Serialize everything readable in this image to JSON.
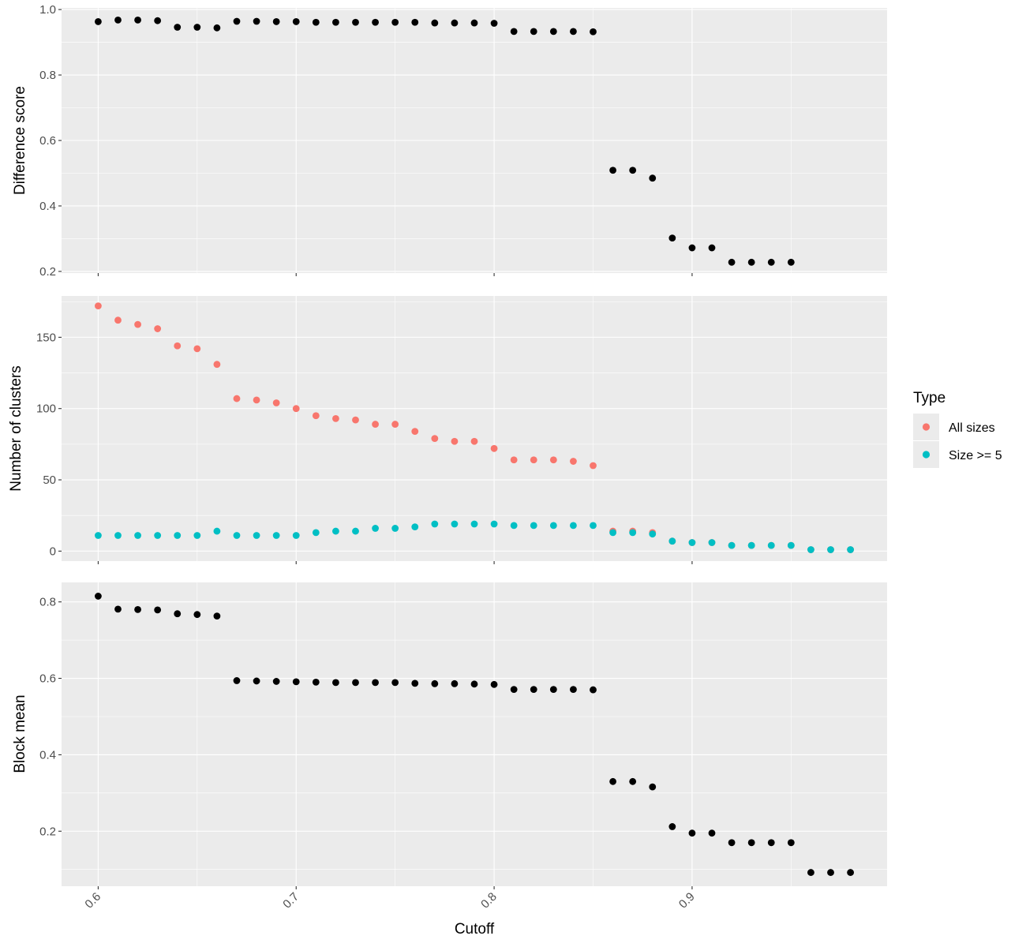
{
  "figure": {
    "x_axis_title": "Cutoff",
    "x_ticks": [
      0.6,
      0.7,
      0.8,
      0.9
    ],
    "x_tick_labels": [
      "0.6",
      "0.7",
      "0.8",
      "0.9"
    ],
    "xlim": [
      0.5815,
      0.9985
    ]
  },
  "legend": {
    "title": "Type",
    "items": [
      {
        "label": "All sizes",
        "color": "#F8766D"
      },
      {
        "label": "Size >= 5",
        "color": "#00BFC4"
      }
    ]
  },
  "chart_data": [
    {
      "type": "scatter",
      "ylabel": "Difference score",
      "xlabel": "",
      "ylim": [
        0.195,
        1.005
      ],
      "y_ticks": [
        0.2,
        0.4,
        0.6,
        0.8,
        1.0
      ],
      "y_tick_labels": [
        "0.2",
        "0.4",
        "0.6",
        "0.8",
        "1.0"
      ],
      "grid": true,
      "series": [
        {
          "color": "#000000",
          "x": [
            0.6,
            0.61,
            0.62,
            0.63,
            0.64,
            0.65,
            0.66,
            0.67,
            0.68,
            0.69,
            0.7,
            0.71,
            0.72,
            0.73,
            0.74,
            0.75,
            0.76,
            0.77,
            0.78,
            0.79,
            0.8,
            0.81,
            0.82,
            0.83,
            0.84,
            0.85,
            0.86,
            0.87,
            0.88,
            0.89,
            0.9,
            0.91,
            0.92,
            0.93,
            0.94,
            0.95
          ],
          "y": [
            0.963,
            0.968,
            0.968,
            0.966,
            0.946,
            0.946,
            0.944,
            0.964,
            0.964,
            0.963,
            0.963,
            0.961,
            0.961,
            0.961,
            0.961,
            0.961,
            0.961,
            0.959,
            0.959,
            0.959,
            0.958,
            0.933,
            0.933,
            0.933,
            0.933,
            0.932,
            0.509,
            0.509,
            0.485,
            0.302,
            0.272,
            0.272,
            0.228,
            0.228,
            0.228,
            0.228
          ]
        }
      ]
    },
    {
      "type": "scatter",
      "ylabel": "Number of clusters",
      "xlabel": "",
      "ylim": [
        -7,
        179
      ],
      "y_ticks": [
        0,
        50,
        100,
        150
      ],
      "y_tick_labels": [
        "0",
        "50",
        "100",
        "150"
      ],
      "grid": true,
      "legend": "right",
      "series": [
        {
          "name": "All sizes",
          "color": "#F8766D",
          "x": [
            0.6,
            0.61,
            0.62,
            0.63,
            0.64,
            0.65,
            0.66,
            0.67,
            0.68,
            0.69,
            0.7,
            0.71,
            0.72,
            0.73,
            0.74,
            0.75,
            0.76,
            0.77,
            0.78,
            0.79,
            0.8,
            0.81,
            0.82,
            0.83,
            0.84,
            0.85,
            0.86,
            0.87,
            0.88,
            0.89,
            0.9,
            0.91,
            0.92,
            0.93,
            0.94,
            0.95,
            0.96,
            0.97,
            0.98
          ],
          "y": [
            172,
            162,
            159,
            156,
            144,
            142,
            131,
            107,
            106,
            104,
            100,
            95,
            93,
            92,
            89,
            89,
            84,
            79,
            77,
            77,
            72,
            64,
            64,
            64,
            63,
            60,
            14,
            14,
            13,
            7,
            6,
            6,
            4,
            4,
            4,
            4,
            1,
            1,
            1
          ]
        },
        {
          "name": "Size >= 5",
          "color": "#00BFC4",
          "x": [
            0.6,
            0.61,
            0.62,
            0.63,
            0.64,
            0.65,
            0.66,
            0.67,
            0.68,
            0.69,
            0.7,
            0.71,
            0.72,
            0.73,
            0.74,
            0.75,
            0.76,
            0.77,
            0.78,
            0.79,
            0.8,
            0.81,
            0.82,
            0.83,
            0.84,
            0.85,
            0.86,
            0.87,
            0.88,
            0.89,
            0.9,
            0.91,
            0.92,
            0.93,
            0.94,
            0.95,
            0.96,
            0.97,
            0.98
          ],
          "y": [
            11,
            11,
            11,
            11,
            11,
            11,
            14,
            11,
            11,
            11,
            11,
            13,
            14,
            14,
            16,
            16,
            17,
            19,
            19,
            19,
            19,
            18,
            18,
            18,
            18,
            18,
            13,
            13,
            12,
            7,
            6,
            6,
            4,
            4,
            4,
            4,
            1,
            1,
            1
          ]
        }
      ]
    },
    {
      "type": "scatter",
      "ylabel": "Block mean",
      "xlabel": "Cutoff",
      "ylim": [
        0.056,
        0.851
      ],
      "y_ticks": [
        0.2,
        0.4,
        0.6,
        0.8
      ],
      "y_tick_labels": [
        "0.2",
        "0.4",
        "0.6",
        "0.8"
      ],
      "grid": true,
      "series": [
        {
          "color": "#000000",
          "x": [
            0.6,
            0.61,
            0.62,
            0.63,
            0.64,
            0.65,
            0.66,
            0.67,
            0.68,
            0.69,
            0.7,
            0.71,
            0.72,
            0.73,
            0.74,
            0.75,
            0.76,
            0.77,
            0.78,
            0.79,
            0.8,
            0.81,
            0.82,
            0.83,
            0.84,
            0.85,
            0.86,
            0.87,
            0.88,
            0.89,
            0.9,
            0.91,
            0.92,
            0.93,
            0.94,
            0.95,
            0.96,
            0.97,
            0.98
          ],
          "y": [
            0.815,
            0.781,
            0.78,
            0.779,
            0.769,
            0.767,
            0.763,
            0.594,
            0.593,
            0.592,
            0.591,
            0.59,
            0.589,
            0.589,
            0.589,
            0.589,
            0.587,
            0.586,
            0.586,
            0.585,
            0.584,
            0.571,
            0.571,
            0.571,
            0.571,
            0.57,
            0.33,
            0.33,
            0.316,
            0.212,
            0.195,
            0.195,
            0.17,
            0.17,
            0.17,
            0.17,
            0.092,
            0.092,
            0.092
          ]
        }
      ]
    }
  ]
}
